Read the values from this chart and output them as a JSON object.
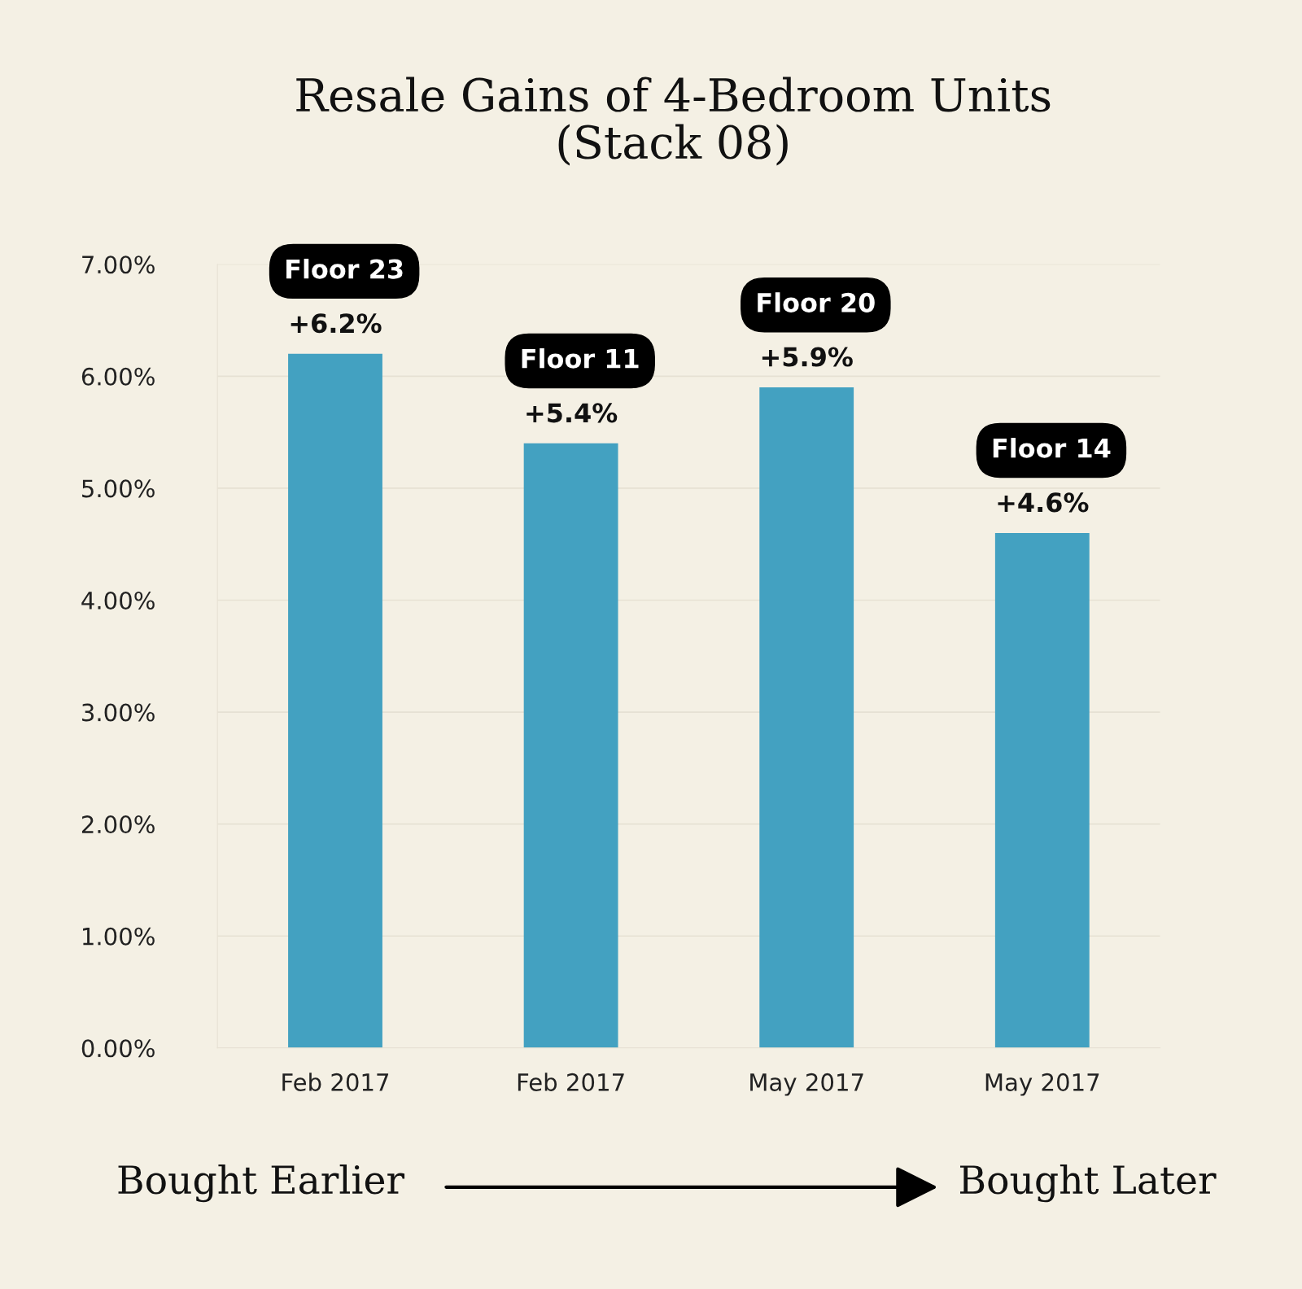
{
  "chart_data": {
    "type": "bar",
    "title": "Resale Gains of 4-Bedroom Units\n(Stack 08)",
    "categories": [
      "Feb 2017",
      "Feb 2017",
      "May 2017",
      "May 2017"
    ],
    "values": [
      6.2,
      5.4,
      5.9,
      4.6
    ],
    "color": "#43a1c1",
    "value_labels": [
      "+6.2%",
      "+5.4%",
      "+5.9%",
      "+4.6%"
    ],
    "ylim": [
      0,
      7
    ],
    "yticks": [
      {
        "value": 0,
        "label": "0.00%"
      },
      {
        "value": 1,
        "label": "1.00%"
      },
      {
        "value": 2,
        "label": "2.00%"
      },
      {
        "value": 3,
        "label": "3.00%"
      },
      {
        "value": 4,
        "label": "4.00%"
      },
      {
        "value": 5,
        "label": "5.00%"
      },
      {
        "value": 6,
        "label": "6.00%"
      },
      {
        "value": 7,
        "label": "7.00%"
      }
    ],
    "grid": "y",
    "legend": false,
    "annotations": [
      "Floor 23",
      "Floor 11",
      "Floor 20",
      "Floor 14",
      "Bought Earlier",
      "Bought Later"
    ]
  }
}
